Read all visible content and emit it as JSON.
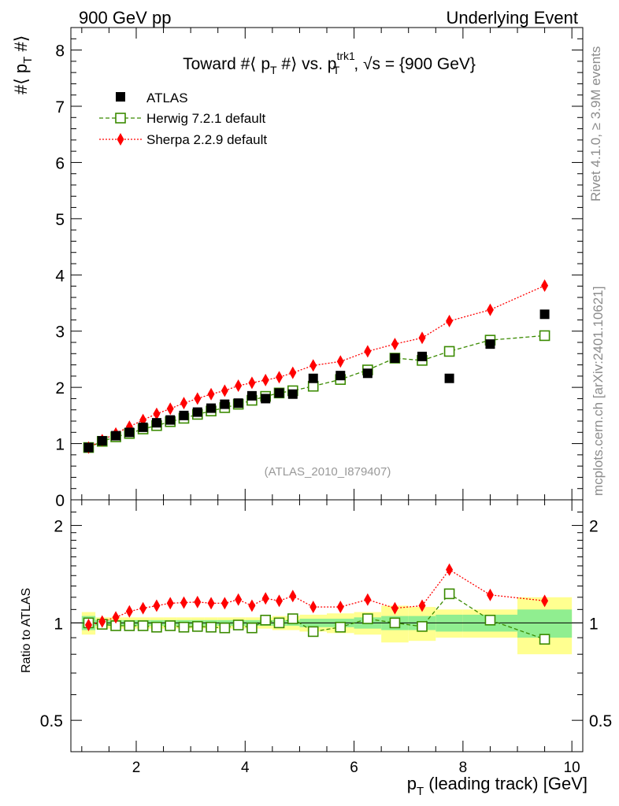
{
  "header": {
    "left": "900 GeV pp",
    "right": "Underlying Event"
  },
  "side_labels": {
    "rivet": "Rivet 4.1.0, ≥ 3.9M events",
    "mcplots": "mcplots.cern.ch [arXiv:2401.10621]"
  },
  "colors": {
    "atlas": "#000000",
    "herwig": "#3a8a00",
    "sherpa": "#ff0000",
    "band_inner": "#90ee90",
    "band_outer": "#ffff90"
  },
  "chart_data": [
    {
      "type": "scatter",
      "title": "Toward #⟨ p_T #⟩ vs. p_T^trk1, √s = {900 GeV}",
      "title_parts": {
        "prefix": "Toward #⟨ p",
        "sub1": "T",
        "mid": " #⟩ vs. p",
        "sup": "trk1",
        "sub2": "T",
        "suffix": ", √s = {900 GeV}"
      },
      "ylabel": "#⟨ p_T #⟩",
      "ylabel_parts": {
        "prefix": "#⟨ p",
        "sub": "T",
        "suffix": " #⟩"
      },
      "xlim": [
        0.8,
        10.2
      ],
      "ylim": [
        0,
        8.4
      ],
      "yticks": [
        0,
        1,
        2,
        3,
        4,
        5,
        6,
        7,
        8
      ],
      "watermark": "(ATLAS_2010_I879407)",
      "legend": [
        "ATLAS",
        "Herwig 7.2.1 default",
        "Sherpa 2.2.9 default"
      ],
      "x": [
        1.125,
        1.375,
        1.625,
        1.875,
        2.125,
        2.375,
        2.625,
        2.875,
        3.125,
        3.375,
        3.625,
        3.875,
        4.125,
        4.375,
        4.625,
        4.875,
        5.25,
        5.75,
        6.25,
        6.75,
        7.25,
        7.75,
        8.5,
        9.5
      ],
      "series": [
        {
          "name": "ATLAS",
          "values": [
            0.93,
            1.05,
            1.14,
            1.2,
            1.29,
            1.37,
            1.42,
            1.5,
            1.56,
            1.63,
            1.7,
            1.72,
            1.85,
            1.8,
            1.9,
            1.88,
            2.16,
            2.21,
            2.25,
            2.52,
            2.55,
            2.16,
            2.77,
            3.3
          ]
        },
        {
          "name": "Herwig 7.2.1 default",
          "values": [
            0.93,
            1.04,
            1.12,
            1.18,
            1.26,
            1.32,
            1.39,
            1.45,
            1.52,
            1.58,
            1.64,
            1.7,
            1.77,
            1.84,
            1.9,
            1.94,
            2.02,
            2.14,
            2.31,
            2.52,
            2.48,
            2.64,
            2.84,
            2.92
          ]
        },
        {
          "name": "Sherpa 2.2.9 default",
          "values": [
            0.93,
            1.06,
            1.18,
            1.3,
            1.42,
            1.53,
            1.62,
            1.72,
            1.8,
            1.88,
            1.94,
            2.03,
            2.08,
            2.13,
            2.18,
            2.26,
            2.39,
            2.46,
            2.64,
            2.77,
            2.88,
            3.18,
            3.38,
            3.81
          ]
        }
      ]
    },
    {
      "type": "scatter",
      "ylabel": "Ratio to ATLAS",
      "xlabel": "p_T (leading track) [GeV]",
      "xlabel_parts": {
        "prefix": "p",
        "sub": "T",
        "suffix": " (leading track) [GeV]"
      },
      "xlim": [
        0.8,
        10.2
      ],
      "ylim": [
        0.4,
        2.4
      ],
      "yscale": "log",
      "yticks": [
        0.5,
        1,
        2
      ],
      "xticks": [
        2,
        4,
        6,
        8,
        10
      ],
      "x": [
        1.125,
        1.375,
        1.625,
        1.875,
        2.125,
        2.375,
        2.625,
        2.875,
        3.125,
        3.375,
        3.625,
        3.875,
        4.125,
        4.375,
        4.625,
        4.875,
        5.25,
        5.75,
        6.25,
        6.75,
        7.25,
        7.75,
        8.5,
        9.5
      ],
      "bin_edges": [
        1.0,
        1.25,
        1.5,
        1.75,
        2.0,
        2.25,
        2.5,
        2.75,
        3.0,
        3.25,
        3.5,
        3.75,
        4.0,
        4.25,
        4.5,
        4.75,
        5.0,
        5.5,
        6.0,
        6.5,
        7.0,
        7.5,
        8.0,
        9.0,
        10.0
      ],
      "band_inner": [
        0.05,
        0.02,
        0.02,
        0.02,
        0.02,
        0.02,
        0.02,
        0.02,
        0.02,
        0.02,
        0.02,
        0.02,
        0.02,
        0.02,
        0.02,
        0.02,
        0.03,
        0.03,
        0.04,
        0.05,
        0.05,
        0.06,
        0.06,
        0.1
      ],
      "band_outer": [
        0.08,
        0.04,
        0.04,
        0.04,
        0.04,
        0.04,
        0.04,
        0.04,
        0.04,
        0.04,
        0.04,
        0.04,
        0.04,
        0.04,
        0.05,
        0.05,
        0.06,
        0.07,
        0.08,
        0.13,
        0.12,
        0.1,
        0.1,
        0.2
      ],
      "series": [
        {
          "name": "Herwig 7.2.1 default",
          "values": [
            1.0,
            0.99,
            0.98,
            0.98,
            0.98,
            0.97,
            0.98,
            0.97,
            0.975,
            0.97,
            0.965,
            0.985,
            0.965,
            1.02,
            1.0,
            1.03,
            0.94,
            0.97,
            1.03,
            1.0,
            0.975,
            1.23,
            1.02,
            0.89
          ]
        },
        {
          "name": "Sherpa 2.2.9 default",
          "values": [
            0.985,
            1.01,
            1.04,
            1.085,
            1.11,
            1.13,
            1.15,
            1.155,
            1.16,
            1.15,
            1.15,
            1.18,
            1.13,
            1.19,
            1.17,
            1.21,
            1.12,
            1.12,
            1.18,
            1.11,
            1.13,
            1.46,
            1.22,
            1.17
          ]
        }
      ]
    }
  ]
}
